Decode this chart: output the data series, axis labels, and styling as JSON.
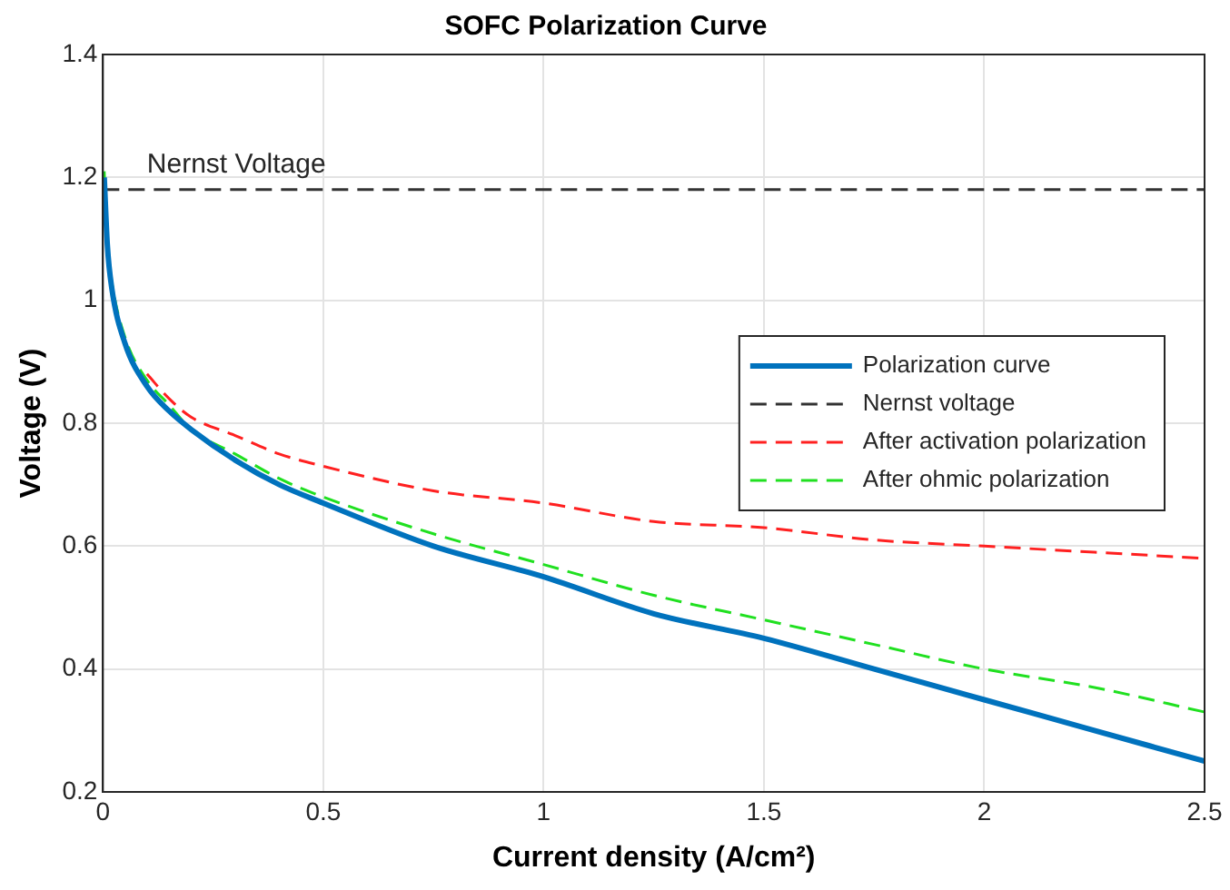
{
  "chart_data": {
    "type": "line",
    "title": "SOFC Polarization Curve",
    "xlabel": "Current density (A/cm²)",
    "ylabel": "Voltage (V)",
    "xlim": [
      0,
      2.5
    ],
    "xticks": [
      0,
      0.5,
      1,
      1.5,
      2,
      2.5
    ],
    "ylim": [
      0.2,
      1.4
    ],
    "yticks": [
      0.2,
      0.4,
      0.6,
      0.8,
      1,
      1.2,
      1.4
    ],
    "grid": true,
    "legend": "right",
    "marker": "none",
    "annotations": [
      {
        "text": "Nernst Voltage",
        "x": 0.1,
        "y": 1.18
      }
    ],
    "series": [
      {
        "name": "Polarization curve",
        "color": "#0072bd",
        "line_style": "solid",
        "x": [
          0.003,
          0.01,
          0.02,
          0.05,
          0.1,
          0.15,
          0.2,
          0.3,
          0.4,
          0.5,
          0.75,
          1,
          1.25,
          1.5,
          1.75,
          2,
          2.25,
          2.5
        ],
        "values": [
          1.2,
          1.09,
          1.02,
          0.93,
          0.86,
          0.82,
          0.79,
          0.74,
          0.7,
          0.67,
          0.6,
          0.55,
          0.49,
          0.45,
          0.4,
          0.35,
          0.3,
          0.25
        ]
      },
      {
        "name": "Nernst voltage",
        "color": "#333333",
        "line_style": "dashed",
        "x": [
          0,
          2.5
        ],
        "values": [
          1.18,
          1.18
        ]
      },
      {
        "name": "After activation polarization",
        "color": "#ff2020",
        "line_style": "dashed",
        "x": [
          0.1,
          0.15,
          0.2,
          0.3,
          0.4,
          0.5,
          0.75,
          1,
          1.25,
          1.5,
          1.75,
          2,
          2.25,
          2.5
        ],
        "values": [
          0.88,
          0.84,
          0.81,
          0.78,
          0.75,
          0.73,
          0.69,
          0.67,
          0.64,
          0.63,
          0.61,
          0.6,
          0.59,
          0.58
        ]
      },
      {
        "name": "After ohmic polarization",
        "color": "#20e020",
        "line_style": "dashed",
        "x": [
          0.003,
          0.01,
          0.02,
          0.05,
          0.1,
          0.15,
          0.2,
          0.3,
          0.4,
          0.5,
          0.75,
          1,
          1.25,
          1.5,
          1.75,
          2,
          2.25,
          2.5
        ],
        "values": [
          1.21,
          1.09,
          1.03,
          0.94,
          0.87,
          0.83,
          0.79,
          0.75,
          0.71,
          0.68,
          0.62,
          0.57,
          0.52,
          0.48,
          0.44,
          0.4,
          0.37,
          0.33
        ]
      }
    ]
  }
}
